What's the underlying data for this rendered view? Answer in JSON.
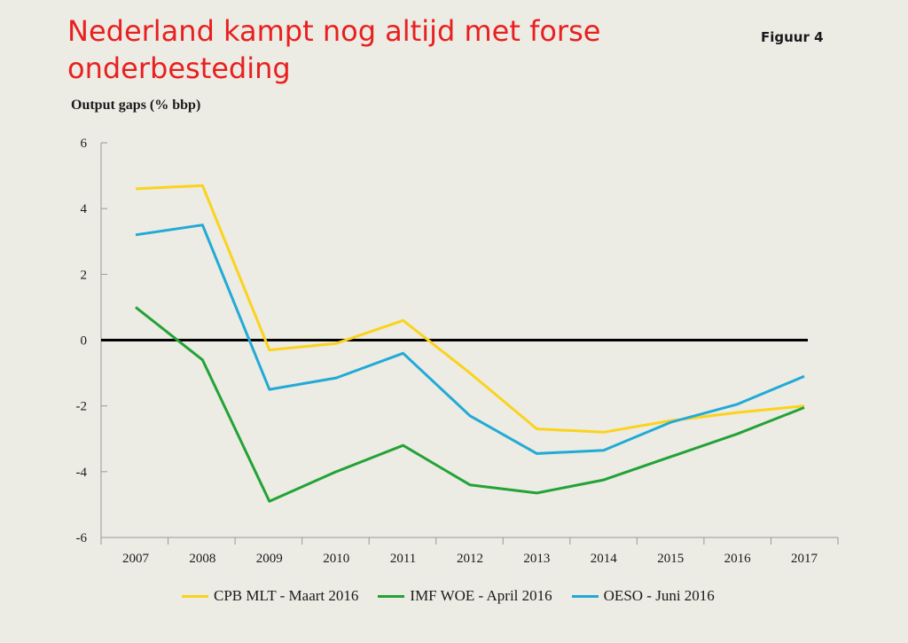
{
  "header": {
    "title": "Nederland kampt nog altijd met forse onderbesteding",
    "figure_label": "Figuur 4"
  },
  "chart_data": {
    "type": "line",
    "title": "Nederland kampt nog altijd met forse onderbesteding",
    "ylabel": "Output gaps (% bbp)",
    "xlabel": "",
    "categories": [
      "2007",
      "2008",
      "2009",
      "2010",
      "2011",
      "2012",
      "2013",
      "2014",
      "2015",
      "2016",
      "2017"
    ],
    "ylim": [
      -6,
      6
    ],
    "yticks": [
      6,
      4,
      2,
      0,
      -2,
      -4,
      -6
    ],
    "zero_line": true,
    "grid": false,
    "legend_position": "bottom",
    "series": [
      {
        "name": "CPB MLT - Maart 2016",
        "color": "#fbd31c",
        "values": [
          4.6,
          4.7,
          -0.3,
          -0.1,
          0.6,
          -1.0,
          -2.7,
          -2.8,
          -2.45,
          -2.2,
          -2.0
        ]
      },
      {
        "name": "IMF WOE - April 2016",
        "color": "#22a336",
        "values": [
          1.0,
          -0.6,
          -4.9,
          -4.0,
          -3.2,
          -4.4,
          -4.65,
          -4.25,
          -3.55,
          -2.85,
          -2.05
        ]
      },
      {
        "name": "OESO - Juni 2016",
        "color": "#22aad6",
        "values": [
          3.2,
          3.5,
          -1.5,
          -1.15,
          -0.4,
          -2.3,
          -3.45,
          -3.35,
          -2.5,
          -1.95,
          -1.1
        ]
      }
    ]
  }
}
